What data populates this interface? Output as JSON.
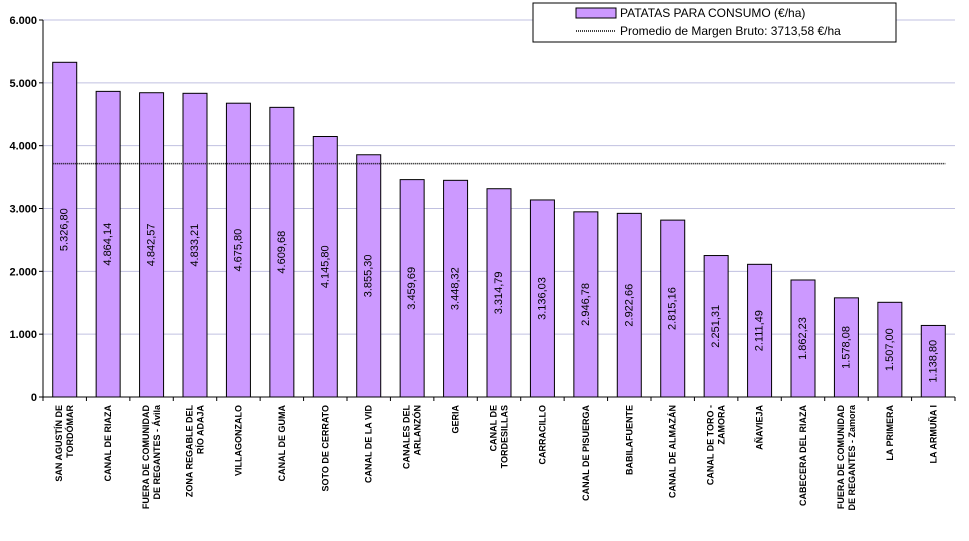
{
  "chart_data": {
    "type": "bar",
    "categories": [
      "SAN AGUSTÍN DE TORDOMAR",
      "CANAL DE RIAZA",
      "FUERA DE COMUNIDAD DE REGANTES - Ávila",
      "ZONA REGABLE DEL RÍO ADAJA",
      "VILLAGONZALO",
      "CANAL DE GUMA",
      "SOTO DE CERRATO",
      "CANAL DE LA VID",
      "CANALES DEL ARLANZÓN",
      "GERIA",
      "CANAL DE TORDESILLAS",
      "CARRACILLO",
      "CANAL DE PISUERGA",
      "BABILAFUENTE",
      "CANAL DE ALMAZÁN",
      "CANAL DE TORO - ZAMORA",
      "AÑAVIEJA",
      "CABECERA DEL RIAZA",
      "FUERA DE COMUNIDAD DE REGANTES - Zamora",
      "LA PRIMERA",
      "LA ARMUÑA I"
    ],
    "category_lines": [
      [
        "SAN AGUSTÍN DE",
        "TORDÓMAR"
      ],
      [
        "CANAL DE RIAZA"
      ],
      [
        "FUERA DE COMUNIDAD",
        "DE REGANTES - Ávila"
      ],
      [
        "ZONA REGABLE DEL",
        "RÍO ADAJA"
      ],
      [
        "VILLAGONZALO"
      ],
      [
        "CANAL DE GUMA"
      ],
      [
        "SOTO DE CERRATO"
      ],
      [
        "CANAL DE LA VID"
      ],
      [
        "CANALES DEL",
        "ARLANZÓN"
      ],
      [
        "GERIA"
      ],
      [
        "CANAL DE",
        "TORDESILLAS"
      ],
      [
        "CARRACILLO"
      ],
      [
        "CANAL DE PISUERGA"
      ],
      [
        "BABILAFUENTE"
      ],
      [
        "CANAL DE ALMAZÁN"
      ],
      [
        "CANAL DE TORO -",
        "ZAMORA"
      ],
      [
        "AÑAVIEJA"
      ],
      [
        "CABECERA DEL RIAZA"
      ],
      [
        "FUERA DE COMUNIDAD",
        "DE REGANTES - Zamora"
      ],
      [
        "LA PRIMERA"
      ],
      [
        "LA ARMUÑA I"
      ]
    ],
    "series": [
      {
        "name": "PATATAS PARA CONSUMO (€/ha)",
        "values": [
          5326.8,
          4864.14,
          4842.57,
          4833.21,
          4675.8,
          4609.68,
          4145.8,
          3855.3,
          3459.69,
          3448.32,
          3314.79,
          3136.03,
          2946.78,
          2922.66,
          2815.16,
          2251.31,
          2111.49,
          1862.23,
          1578.08,
          1507.0,
          1138.8
        ],
        "labels": [
          "5.326,80",
          "4.864,14",
          "4.842,57",
          "4.833,21",
          "4.675,80",
          "4.609,68",
          "4.145,80",
          "3.855,30",
          "3.459,69",
          "3.448,32",
          "3.314,79",
          "3.136,03",
          "2.946,78",
          "2.922,66",
          "2.815,16",
          "2.251,31",
          "2.111,49",
          "1.862,23",
          "1.578,08",
          "1.507,00",
          "1.138,80"
        ],
        "color": "#cc99ff"
      }
    ],
    "reference_line": {
      "name": "Promedio de Margen Bruto: 3713,58 €/ha",
      "value": 3713.58
    },
    "ylim": [
      0,
      6000
    ],
    "yticks": [
      0,
      1000,
      2000,
      3000,
      4000,
      5000,
      6000
    ],
    "ytick_labels": [
      "0",
      "1.000",
      "2.000",
      "3.000",
      "4.000",
      "5.000",
      "6.000"
    ],
    "legend_position": "top-right",
    "grid": "horizontal",
    "grid_color": "#c0c0e0",
    "title": "",
    "xlabel": "",
    "ylabel": ""
  }
}
